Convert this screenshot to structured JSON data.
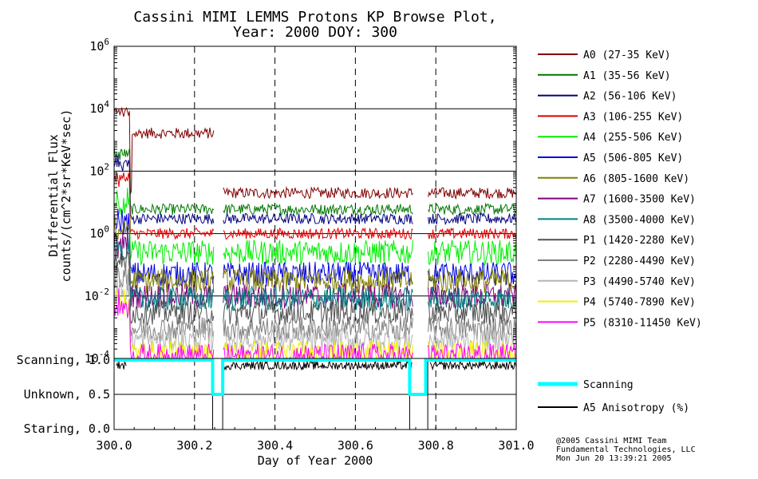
{
  "chart_data": [
    {
      "type": "line",
      "title": "Cassini MIMI LEMMS Protons KP Browse Plot,",
      "subtitle": "Year: 2000 DOY: 300",
      "ylabel": "Differential Flux",
      "ylabel2": "counts/(cm^2*sr*KeV*sec)",
      "y_scale": "log",
      "ylim": [
        0.0001,
        1000000
      ],
      "xlim": [
        300.0,
        301.0
      ],
      "grid": true,
      "legend_position": "right",
      "data_gaps": [
        [
          300.25,
          300.27
        ],
        [
          300.745,
          300.78
        ]
      ],
      "series": [
        {
          "name": "A0 (27-35 KeV)",
          "color": "#800000",
          "level": 20
        },
        {
          "name": "A1 (35-56 KeV)",
          "color": "#007800",
          "level": 6
        },
        {
          "name": "A2 (56-106 KeV)",
          "color": "#000080",
          "level": 3
        },
        {
          "name": "A3 (106-255 KeV)",
          "color": "#e00000",
          "level": 1
        },
        {
          "name": "A4 (255-506 KeV)",
          "color": "#00ee00",
          "level": 0.25
        },
        {
          "name": "A5 (506-805 KeV)",
          "color": "#0000e0",
          "level": 0.05
        },
        {
          "name": "A6 (805-1600 KeV)",
          "color": "#808000",
          "level": 0.03
        },
        {
          "name": "A7 (1600-3500 KeV)",
          "color": "#800080",
          "level": 0.01
        },
        {
          "name": "A8 (3500-4000 KeV)",
          "color": "#008080",
          "level": 0.008
        },
        {
          "name": "P1 (1420-2280 KeV)",
          "color": "#505050",
          "level": 0.003
        },
        {
          "name": "P2 (2280-4490 KeV)",
          "color": "#808080",
          "level": 0.0009
        },
        {
          "name": "P3 (4490-5740 KeV)",
          "color": "#b4b4b4",
          "level": 0.0004
        },
        {
          "name": "P4 (5740-7890 KeV)",
          "color": "#f0f000",
          "level": 0.00015
        },
        {
          "name": "P5 (8310-11450 KeV)",
          "color": "#ff00ff",
          "level": 0.00012
        }
      ]
    },
    {
      "type": "line",
      "xlabel": "Day of Year 2000",
      "xlim": [
        300.0,
        301.0
      ],
      "ylim": [
        0.0,
        1.0
      ],
      "y_tick_labels": [
        "Scanning, 1.0",
        "Unknown, 0.5",
        "Staring, 0.0"
      ],
      "x_ticks": [
        "300.0",
        "300.2",
        "300.4",
        "300.6",
        "300.8",
        "301.0"
      ],
      "series": [
        {
          "name": "Scanning",
          "color": "#00ffff",
          "segments": [
            [
              300.0,
              1.0
            ],
            [
              300.245,
              1.0
            ],
            [
              300.245,
              0.5
            ],
            [
              300.27,
              0.5
            ],
            [
              300.27,
              1.0
            ],
            [
              300.735,
              1.0
            ],
            [
              300.735,
              0.5
            ],
            [
              300.775,
              0.5
            ],
            [
              300.775,
              1.0
            ],
            [
              301.0,
              1.0
            ]
          ]
        },
        {
          "name": "A5 Anisotropy (%)",
          "color": "#000000",
          "level": 0.92
        }
      ]
    }
  ],
  "y_tick_labels_top": [
    "10^6",
    "10^4",
    "10^2",
    "10^0",
    "10^-2",
    "10^-4"
  ],
  "credits": [
    "@2005 Cassini MIMI Team",
    "Fundamental Technologies, LLC",
    "Mon Jun 20 13:39:21 2005"
  ]
}
